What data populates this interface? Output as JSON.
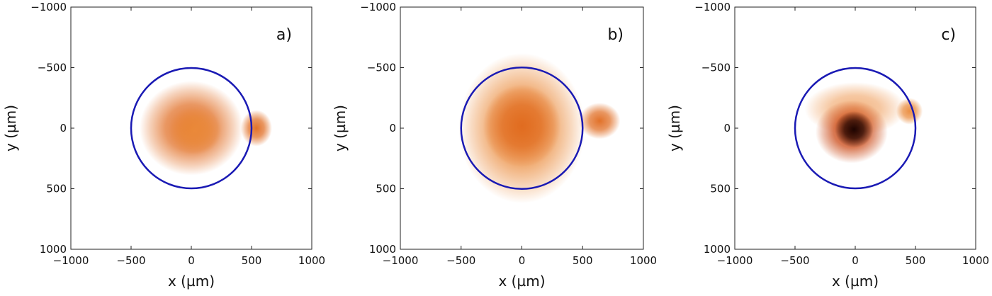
{
  "chart_data": [
    {
      "type": "heatmap",
      "panel_label": "a)",
      "xlabel": "x (µm)",
      "ylabel": "y (µm)",
      "xlim": [
        -1000,
        1000
      ],
      "ylim": [
        -1000,
        1000
      ],
      "y_inverted": true,
      "x_ticks": [
        "−1000",
        "−500",
        "0",
        "500",
        "1000"
      ],
      "y_ticks": [
        "−1000",
        "−500",
        "0",
        "500",
        "1000"
      ],
      "aperture_circle": {
        "cx": 0,
        "cy": 0,
        "r": 500,
        "color": "#1a1ab4"
      },
      "intensity_blobs": [
        {
          "x": 0,
          "y": 0,
          "rx": 430,
          "ry": 390,
          "level": 0.55
        },
        {
          "x": 30,
          "y": 20,
          "rx": 220,
          "ry": 200,
          "level": 0.35
        },
        {
          "x": 540,
          "y": 0,
          "rx": 130,
          "ry": 150,
          "level": 0.6
        }
      ]
    },
    {
      "type": "heatmap",
      "panel_label": "b)",
      "xlabel": "x (µm)",
      "ylabel": "y (µm)",
      "xlim": [
        -1000,
        1000
      ],
      "ylim": [
        -1000,
        1000
      ],
      "y_inverted": true,
      "x_ticks": [
        "−1000",
        "−500",
        "0",
        "500",
        "1000"
      ],
      "y_ticks": [
        "−1000",
        "−500",
        "0",
        "500",
        "1000"
      ],
      "aperture_circle": {
        "cx": 0,
        "cy": 0,
        "r": 500,
        "color": "#1a1ab4"
      },
      "intensity_blobs": [
        {
          "x": 0,
          "y": 0,
          "rx": 520,
          "ry": 620,
          "level": 0.35
        },
        {
          "x": 0,
          "y": -20,
          "rx": 320,
          "ry": 340,
          "level": 0.6
        },
        {
          "x": 640,
          "y": -60,
          "rx": 170,
          "ry": 150,
          "level": 0.55
        }
      ]
    },
    {
      "type": "heatmap",
      "panel_label": "c)",
      "xlabel": "x (µm)",
      "ylabel": "y (µm)",
      "xlim": [
        -1000,
        1000
      ],
      "ylim": [
        -1000,
        1000
      ],
      "y_inverted": true,
      "x_ticks": [
        "−1000",
        "−500",
        "0",
        "500",
        "1000"
      ],
      "y_ticks": [
        "−1000",
        "−500",
        "0",
        "500",
        "1000"
      ],
      "aperture_circle": {
        "cx": 0,
        "cy": 0,
        "r": 500,
        "color": "#1a1ab4"
      },
      "intensity_blobs": [
        {
          "x": 0,
          "y": -160,
          "rx": 420,
          "ry": 220,
          "level": 0.25
        },
        {
          "x": -30,
          "y": 30,
          "rx": 300,
          "ry": 260,
          "level": 0.7
        },
        {
          "x": -10,
          "y": 10,
          "rx": 160,
          "ry": 150,
          "level": 1.0
        },
        {
          "x": 450,
          "y": -140,
          "rx": 110,
          "ry": 110,
          "level": 0.4
        }
      ]
    }
  ]
}
